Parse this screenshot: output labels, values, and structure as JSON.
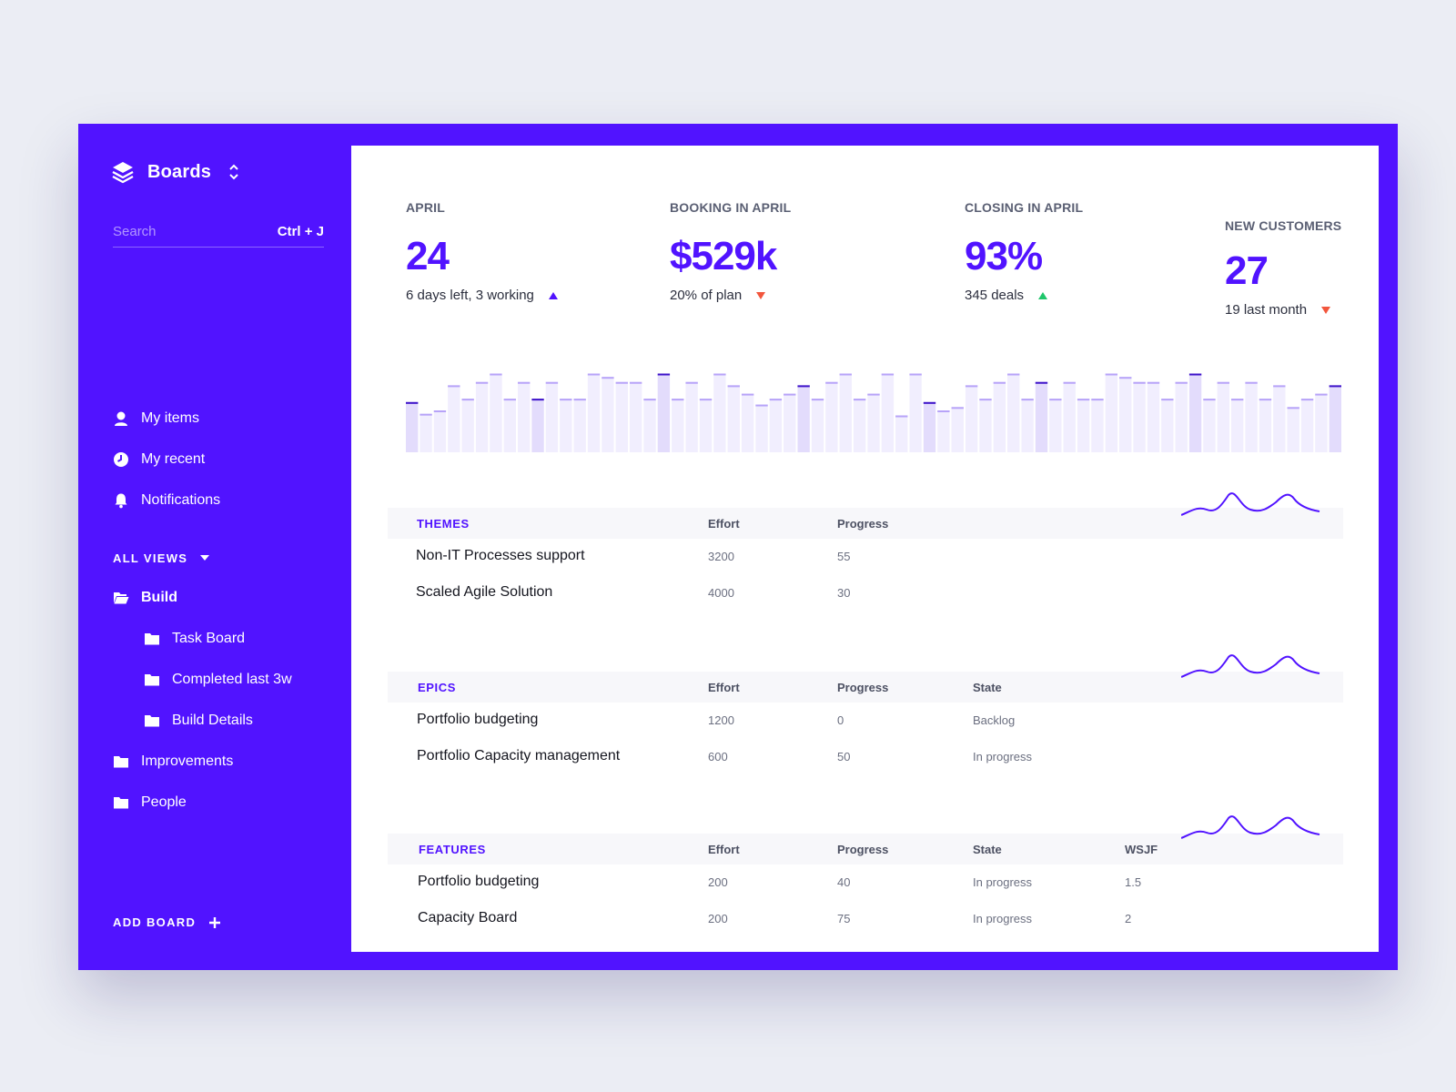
{
  "sidebar": {
    "brand_title": "Boards",
    "search_placeholder": "Search",
    "search_shortcut": "Ctrl + J",
    "nav": [
      {
        "label": "My items",
        "icon": "user-icon"
      },
      {
        "label": "My recent",
        "icon": "clock-icon"
      },
      {
        "label": "Notifications",
        "icon": "bell-icon"
      }
    ],
    "views_label": "ALL VIEWS",
    "tree": [
      {
        "label": "Build",
        "icon": "folder-open-icon",
        "level": 0
      },
      {
        "label": "Task Board",
        "icon": "folder-icon",
        "level": 1
      },
      {
        "label": "Completed last 3w",
        "icon": "folder-icon",
        "level": 1
      },
      {
        "label": "Build Details",
        "icon": "folder-icon",
        "level": 1
      },
      {
        "label": "Improvements",
        "icon": "folder-icon",
        "level": 0
      },
      {
        "label": "People",
        "icon": "folder-icon",
        "level": 0
      }
    ],
    "add_board": "ADD BOARD"
  },
  "kpis": [
    {
      "label": "APRIL",
      "value": "24",
      "sub": "6 days left, 3 working",
      "trend": "up",
      "trend_color": "#5113ff"
    },
    {
      "label": "BOOKING IN APRIL",
      "value": "$529k",
      "sub": "20% of plan",
      "trend": "down",
      "trend_color": "#f2563d"
    },
    {
      "label": "CLOSING IN APRIL",
      "value": "93%",
      "sub": "345 deals",
      "trend": "up",
      "trend_color": "#1fc66b"
    },
    {
      "label": "NEW CUSTOMERS",
      "value": "27",
      "sub": "19 last month",
      "trend": "down",
      "trend_color": "#f2563d"
    }
  ],
  "bars": {
    "values": [
      60,
      46,
      50,
      80,
      64,
      84,
      94,
      64,
      84,
      64,
      84,
      64,
      64,
      94,
      90,
      84,
      84,
      64,
      94,
      64,
      84,
      64,
      94,
      80,
      70,
      57,
      64,
      70,
      80,
      64,
      84,
      94,
      64,
      70,
      94,
      44,
      94,
      60,
      50,
      54,
      80,
      64,
      84,
      94,
      64,
      84,
      64,
      84,
      64,
      64,
      94,
      90,
      84,
      84,
      64,
      84,
      94,
      64,
      84,
      64,
      84,
      64,
      80,
      54,
      64,
      70,
      80
    ],
    "highlight": [
      0,
      9,
      18,
      28,
      37,
      45,
      56,
      66
    ],
    "colors": {
      "bar": "#f1eefe",
      "bar_dark": "#e3dcfc",
      "cap": "#b7a3f8",
      "cap_dark": "#3d12c9"
    }
  },
  "tables": [
    {
      "title": "THEMES",
      "columns": [
        "Effort",
        "Progress"
      ],
      "rows": [
        {
          "name": "Non-IT Processes support",
          "cells": [
            "3200",
            "55"
          ]
        },
        {
          "name": "Scaled Agile Solution",
          "cells": [
            "4000",
            "30"
          ]
        }
      ]
    },
    {
      "title": "EPICS",
      "columns": [
        "Effort",
        "Progress",
        "State"
      ],
      "rows": [
        {
          "name": "Portfolio budgeting",
          "cells": [
            "1200",
            "0",
            "Backlog"
          ]
        },
        {
          "name": "Portfolio Capacity management",
          "cells": [
            "600",
            "50",
            "In progress"
          ]
        }
      ]
    },
    {
      "title": "FEATURES",
      "columns": [
        "Effort",
        "Progress",
        "State",
        "WSJF"
      ],
      "rows": [
        {
          "name": "Portfolio budgeting",
          "cells": [
            "200",
            "40",
            "In progress",
            "1.5"
          ]
        },
        {
          "name": "Capacity Board",
          "cells": [
            "200",
            "75",
            "In progress",
            "2"
          ]
        }
      ]
    }
  ],
  "colors": {
    "accent": "#5113ff",
    "spark": "#5113ff"
  }
}
